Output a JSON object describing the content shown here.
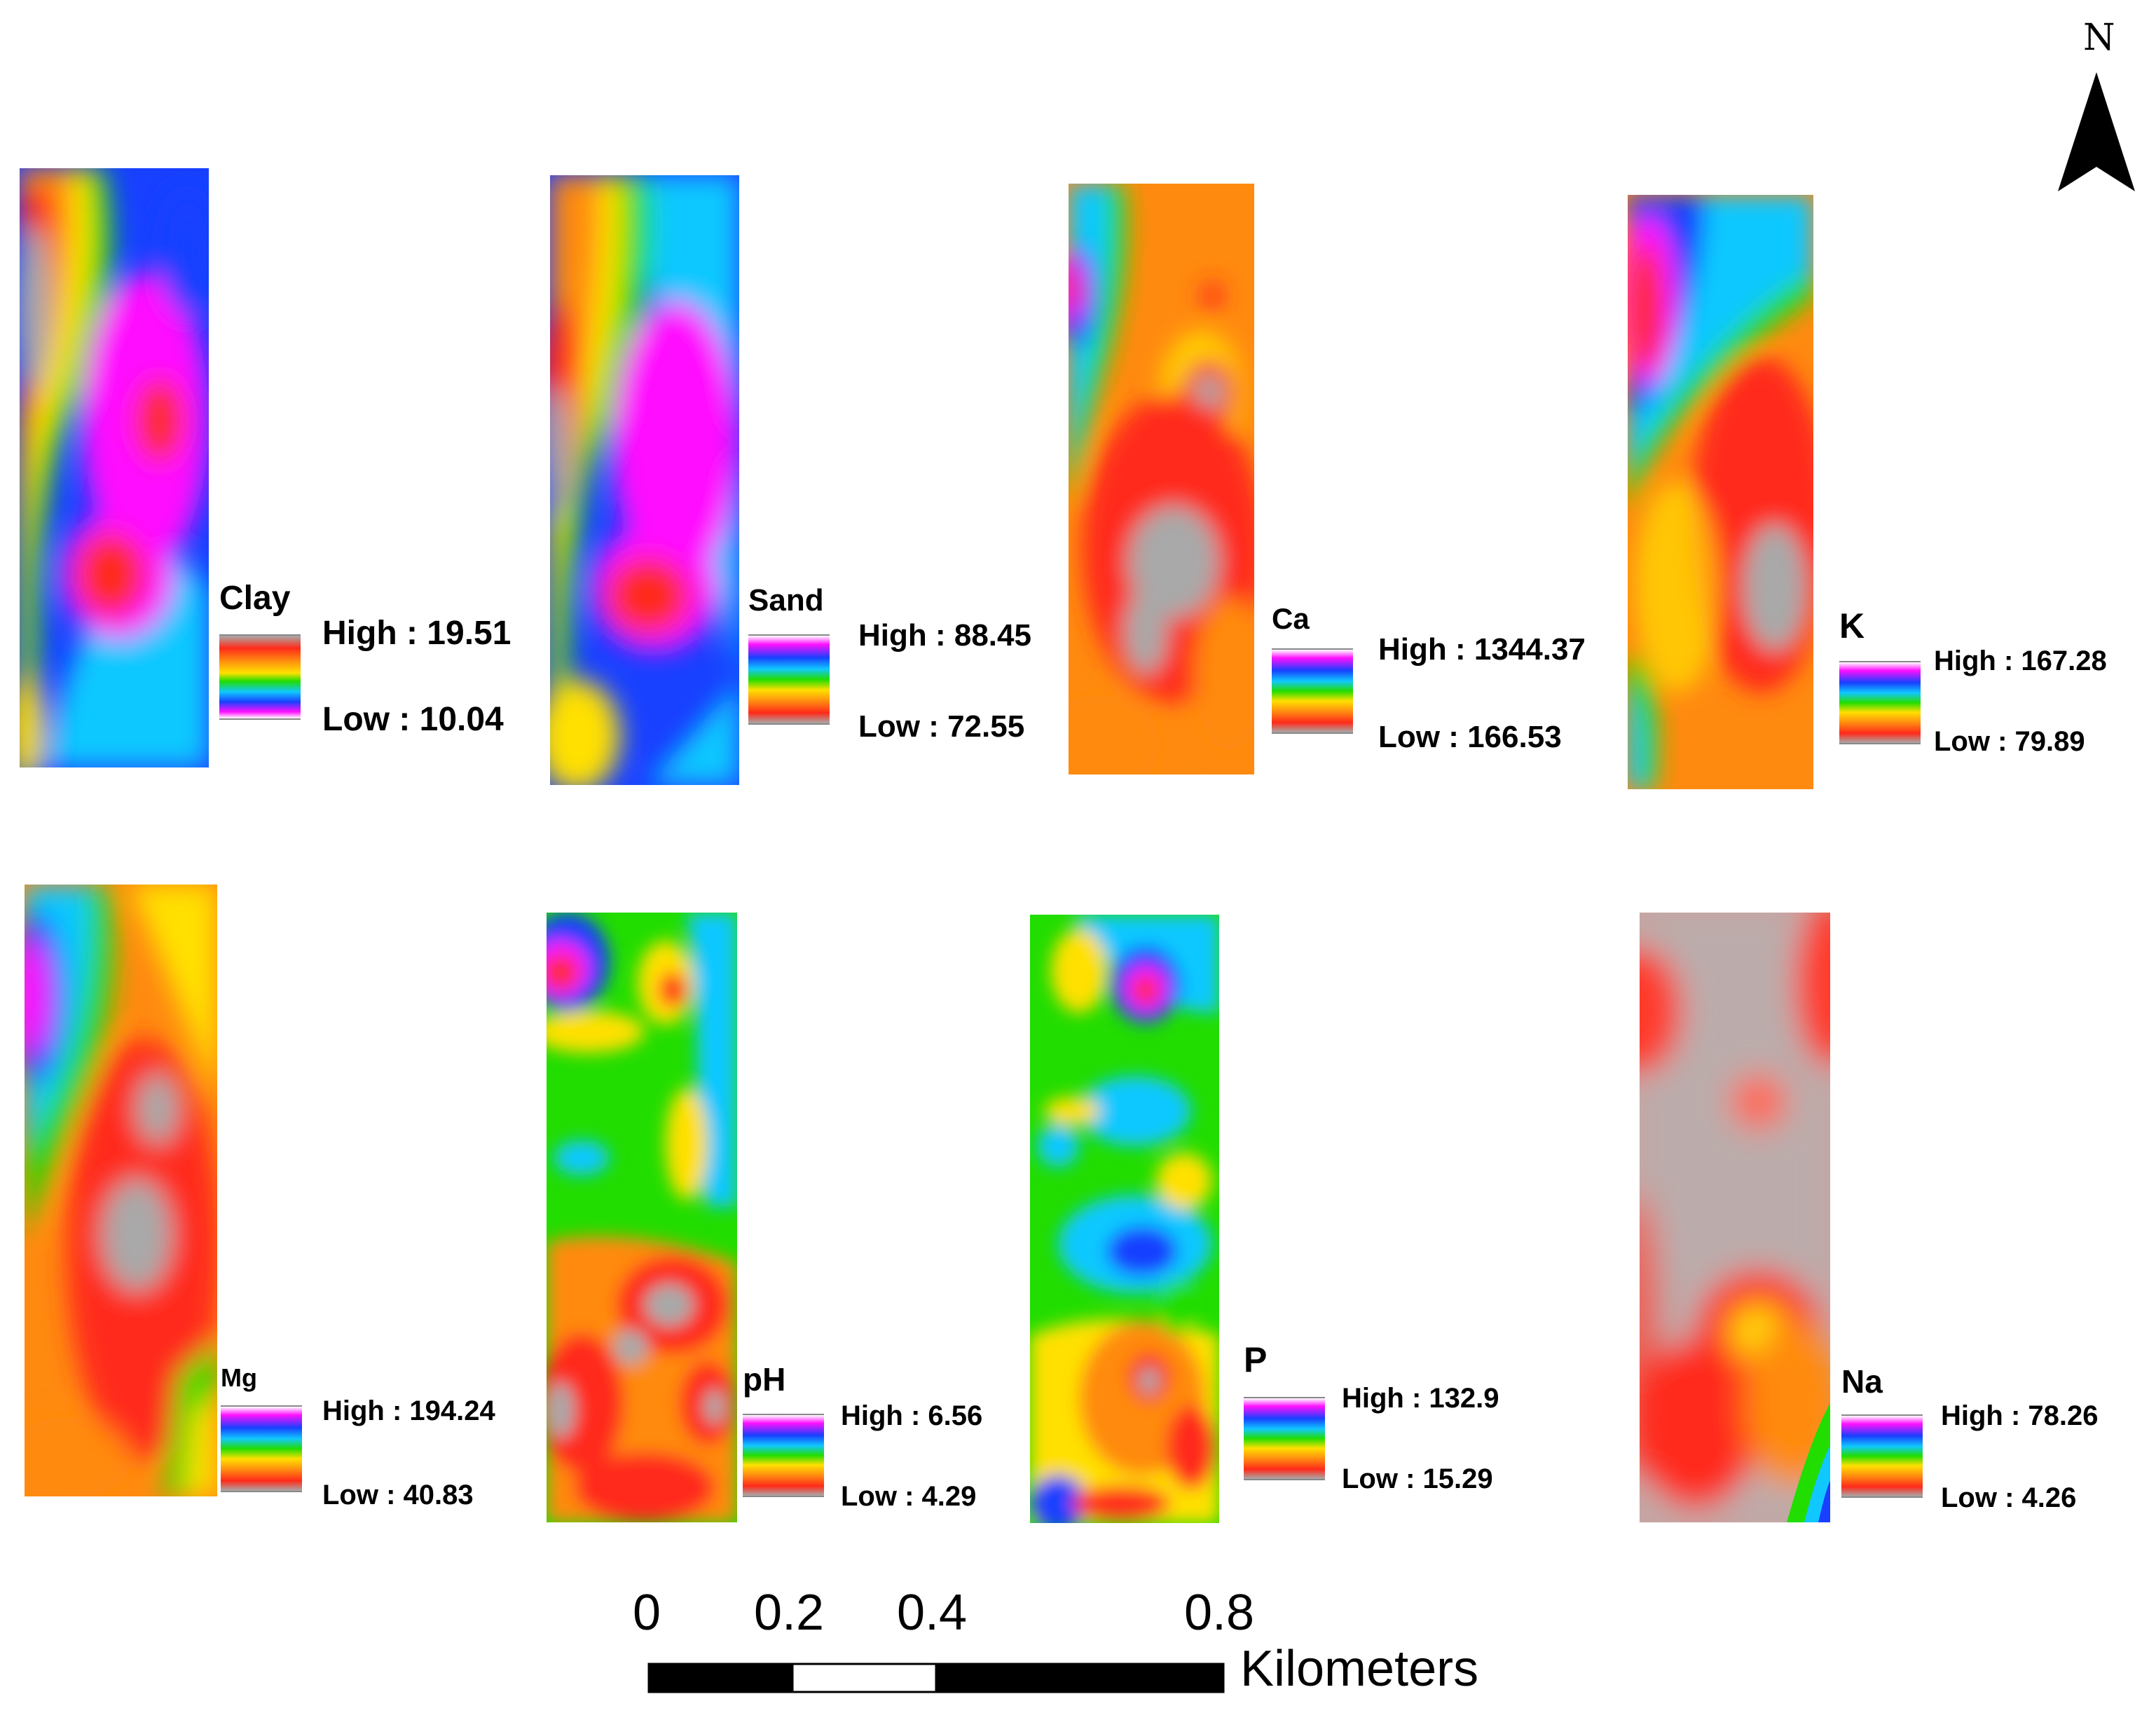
{
  "panels": [
    {
      "title": "Clay",
      "high": "High : 19.51",
      "low": "Low : 10.04",
      "ramp": "clay"
    },
    {
      "title": "Sand",
      "high": "High : 88.45",
      "low": "Low : 72.55",
      "ramp": "sand"
    },
    {
      "title": "Ca",
      "high": "High : 1344.37",
      "low": "Low : 166.53",
      "ramp": "inv"
    },
    {
      "title": "K",
      "high": "High : 167.28",
      "low": "Low : 79.89",
      "ramp": "inv"
    },
    {
      "title": "Mg",
      "high": "High : 194.24",
      "low": "Low : 40.83",
      "ramp": "inv"
    },
    {
      "title": "pH",
      "high": "High : 6.56",
      "low": "Low : 4.29",
      "ramp": "inv"
    },
    {
      "title": "P",
      "high": "High : 132.9",
      "low": "Low : 15.29",
      "ramp": "inv"
    },
    {
      "title": "Na",
      "high": "High : 78.26",
      "low": "Low : 4.26",
      "ramp": "inv"
    }
  ],
  "north_arrow": {
    "label": "N"
  },
  "scale_bar": {
    "ticks": [
      "0",
      "0.2",
      "0.4",
      "0.8"
    ],
    "unit": "Kilometers"
  },
  "colors": {
    "gray": "#a9a9a9",
    "red": "#ff2a1a",
    "orange": "#ff8a10",
    "yellow": "#ffe000",
    "green": "#22dd00",
    "cyan": "#10c8ff",
    "blue": "#1840ff",
    "magenta": "#ff10ff",
    "white": "#ffffff"
  }
}
